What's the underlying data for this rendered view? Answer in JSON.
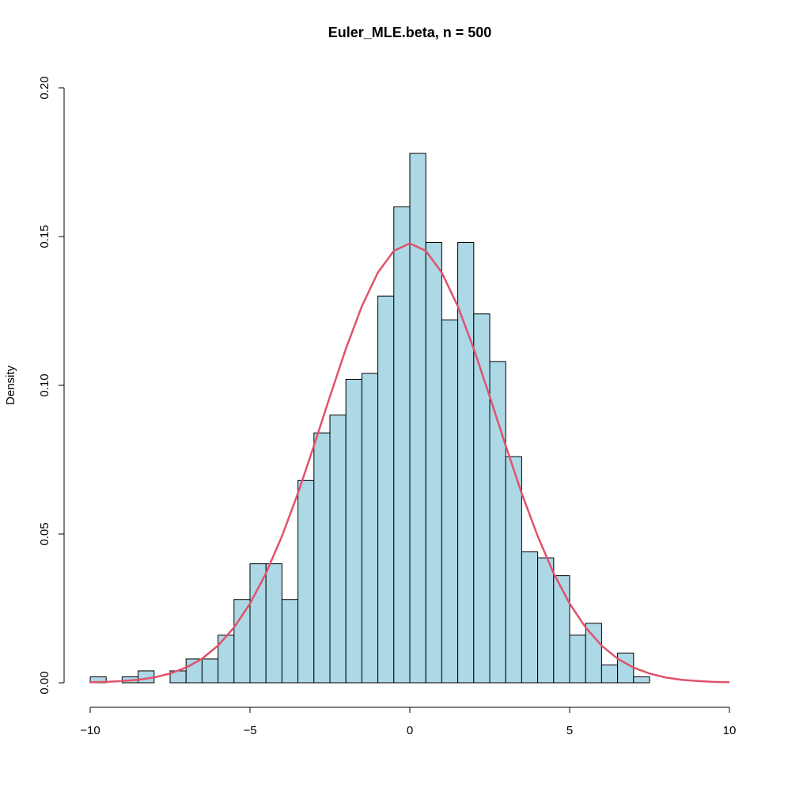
{
  "chart_data": {
    "type": "histogram",
    "title": "Euler_MLE.beta, n = 500",
    "y_label": "Density",
    "bins": [
      -10,
      -9.5,
      -9,
      -8.5,
      -8,
      -7.5,
      -7,
      -6.5,
      -6,
      -5.5,
      -5,
      -4.5,
      -4,
      -3.5,
      -3,
      -2.5,
      -2,
      -1.5,
      -1,
      -0.5,
      0,
      0.5,
      1,
      1.5,
      2,
      2.5,
      3,
      3.5,
      4,
      4.5,
      5,
      5.5,
      6,
      6.5,
      7,
      7.5
    ],
    "values": [
      0.002,
      0,
      0.002,
      0.004,
      0,
      0.004,
      0.008,
      0.008,
      0.016,
      0.028,
      0.04,
      0.04,
      0.028,
      0.068,
      0.084,
      0.09,
      0.102,
      0.104,
      0.13,
      0.16,
      0.178,
      0.148,
      0.122,
      0.148,
      0.124,
      0.108,
      0.076,
      0.044,
      0.042,
      0.036,
      0.016,
      0.02,
      0.006,
      0.01,
      0.002
    ],
    "color": "#add8e6",
    "curve": {
      "color": "#df536b",
      "x": [
        -10,
        -9.5,
        -9,
        -8.5,
        -8,
        -7.5,
        -7,
        -6.5,
        -6,
        -5.5,
        -5,
        -4.5,
        -4,
        -3.5,
        -3,
        -2.5,
        -2,
        -1.5,
        -1,
        -0.5,
        0,
        0.5,
        1,
        1.5,
        2,
        2.5,
        3,
        3.5,
        4,
        4.5,
        5,
        5.5,
        6,
        6.5,
        7,
        7.5,
        8,
        8.5,
        9,
        9.5,
        10
      ],
      "values": [
        0.0002,
        0.0003,
        0.0006,
        0.001,
        0.0018,
        0.0031,
        0.0051,
        0.0081,
        0.0125,
        0.0186,
        0.0266,
        0.0368,
        0.0493,
        0.0637,
        0.0797,
        0.0962,
        0.1123,
        0.1266,
        0.1379,
        0.1452,
        0.1477,
        0.1452,
        0.1379,
        0.1266,
        0.1123,
        0.0962,
        0.0797,
        0.0637,
        0.0493,
        0.0368,
        0.0266,
        0.0186,
        0.0125,
        0.0081,
        0.0051,
        0.0031,
        0.0018,
        0.001,
        0.0006,
        0.0003,
        0.0002
      ]
    },
    "xlim": [
      -10,
      10
    ],
    "xticks": [
      {
        "value": -10,
        "label": "−10"
      },
      {
        "value": -5,
        "label": "−5"
      },
      0,
      5,
      10
    ],
    "ylim": [
      0,
      0.2
    ],
    "yticks": [
      {
        "value": 0,
        "label": "0.00"
      },
      {
        "value": 0.05,
        "label": "0.05"
      },
      {
        "value": 0.1,
        "label": "0.10"
      },
      {
        "value": 0.15,
        "label": "0.15"
      },
      {
        "value": 0.2,
        "label": "0.20"
      }
    ]
  }
}
